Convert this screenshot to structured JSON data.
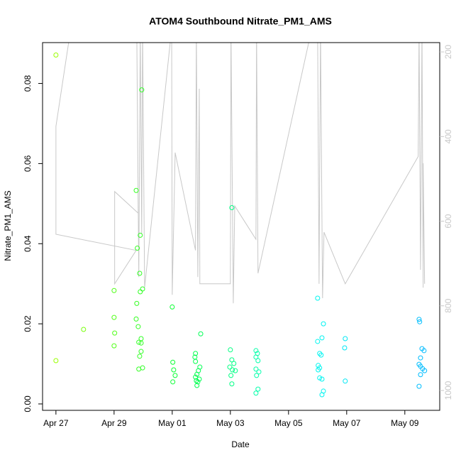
{
  "chart_data": {
    "type": "scatter",
    "title": "ATOM4 Southbound Nitrate_PM1_AMS",
    "x_label": "Date",
    "y_label": "Nitrate_PM1_AMS",
    "xlim": [
      -0.46,
      13.2
    ],
    "xticks": [
      {
        "value": 0,
        "label": "Apr 27"
      },
      {
        "value": 2,
        "label": "Apr 29"
      },
      {
        "value": 4,
        "label": "May 01"
      },
      {
        "value": 6,
        "label": "May 03"
      },
      {
        "value": 8,
        "label": "May 05"
      },
      {
        "value": 10,
        "label": "May 07"
      },
      {
        "value": 12,
        "label": "May 09"
      }
    ],
    "ylim": [
      -0.0016,
      0.0902
    ],
    "yticks": [
      {
        "value": 0,
        "label": "0.00"
      },
      0.02,
      0.04,
      0.06,
      0.08
    ],
    "y2lim": [
      1047,
      178
    ],
    "y2ticks": [
      200,
      400,
      600,
      800,
      1000
    ],
    "series": [
      {
        "type": "scatter",
        "color_range": [
          "#99ff00",
          "#00ff33",
          "#00ffee",
          "#00bbff"
        ],
        "x": [
          0,
          0,
          0.95,
          2.0,
          2.0,
          2.02,
          2.0,
          2.76,
          2.8,
          2.95,
          2.9,
          2.88,
          2.98,
          2.9,
          2.78,
          2.76,
          2.83,
          2.93,
          2.85,
          2.93,
          2.93,
          2.88,
          2.98,
          2.85,
          4.0,
          4.02,
          4.05,
          4.1,
          4.02,
          4.98,
          4.8,
          4.78,
          4.8,
          4.95,
          4.9,
          4.85,
          4.8,
          4.93,
          4.83,
          4.88,
          4.85,
          6.05,
          6.0,
          6.05,
          6.12,
          5.98,
          6.07,
          6.17,
          6.02,
          6.05,
          6.88,
          6.93,
          6.88,
          6.95,
          6.88,
          6.98,
          6.9,
          6.95,
          6.88,
          9.0,
          9.2,
          9.15,
          9.0,
          9.07,
          9.12,
          9.02,
          9.07,
          9.02,
          9.07,
          9.15,
          9.2,
          9.15,
          9.95,
          9.93,
          9.95,
          12.49,
          12.51,
          12.59,
          12.66,
          12.54,
          12.49,
          12.54,
          12.61,
          12.68,
          12.54,
          12.49
        ],
        "values": [
          0.0871,
          0.0108,
          0.0186,
          0.0283,
          0.0216,
          0.0177,
          0.0145,
          0.0533,
          0.0389,
          0.0784,
          0.0421,
          0.0326,
          0.0287,
          0.028,
          0.0251,
          0.0212,
          0.0193,
          0.0163,
          0.0154,
          0.0152,
          0.0131,
          0.0119,
          0.009,
          0.0087,
          0.0242,
          0.0104,
          0.0085,
          0.0071,
          0.0055,
          0.0175,
          0.0126,
          0.0117,
          0.0106,
          0.0092,
          0.0083,
          0.0074,
          0.0067,
          0.0062,
          0.0058,
          0.0055,
          0.0046,
          0.049,
          0.0135,
          0.011,
          0.0101,
          0.0092,
          0.0085,
          0.0083,
          0.0071,
          0.005,
          0.0133,
          0.0126,
          0.0117,
          0.0108,
          0.0087,
          0.008,
          0.0071,
          0.0037,
          0.0027,
          0.0264,
          0.02,
          0.0165,
          0.0156,
          0.0126,
          0.0122,
          0.0096,
          0.009,
          0.0085,
          0.0065,
          0.0062,
          0.0032,
          0.0023,
          0.0163,
          0.014,
          0.0057,
          0.0211,
          0.0205,
          0.0138,
          0.0133,
          0.0115,
          0.0099,
          0.0094,
          0.0088,
          0.0083,
          0.0073,
          0.0044
        ]
      },
      {
        "type": "line",
        "axis": "y2",
        "color": "#c8c8c8",
        "x": [
          0.51,
          0,
          0,
          2.76,
          2.02,
          2.02,
          2.83,
          2.78,
          2.85,
          2.9,
          2.95,
          2.98,
          3.05,
          3.98,
          4.0,
          4.1,
          4.8,
          4.83,
          4.88,
          4.93,
          4.95,
          6.0,
          6.02,
          6.1,
          6.15,
          6.88,
          6.9,
          6.95,
          8.8,
          9.0,
          9.05,
          9.1,
          9.17,
          9.22,
          9.95,
          12.46,
          12.49,
          12.54,
          12.59,
          12.63,
          12.63,
          12.68
        ],
        "values": [
          145,
          376,
          631,
          669,
          748,
          530,
          581,
          145,
          732,
          145,
          631,
          145,
          757,
          145,
          774,
          438,
          669,
          145,
          732,
          287,
          748,
          748,
          145,
          794,
          564,
          643,
          145,
          723,
          145,
          145,
          748,
          145,
          782,
          626,
          748,
          447,
          145,
          715,
          145,
          757,
          463,
          748
        ]
      }
    ]
  }
}
